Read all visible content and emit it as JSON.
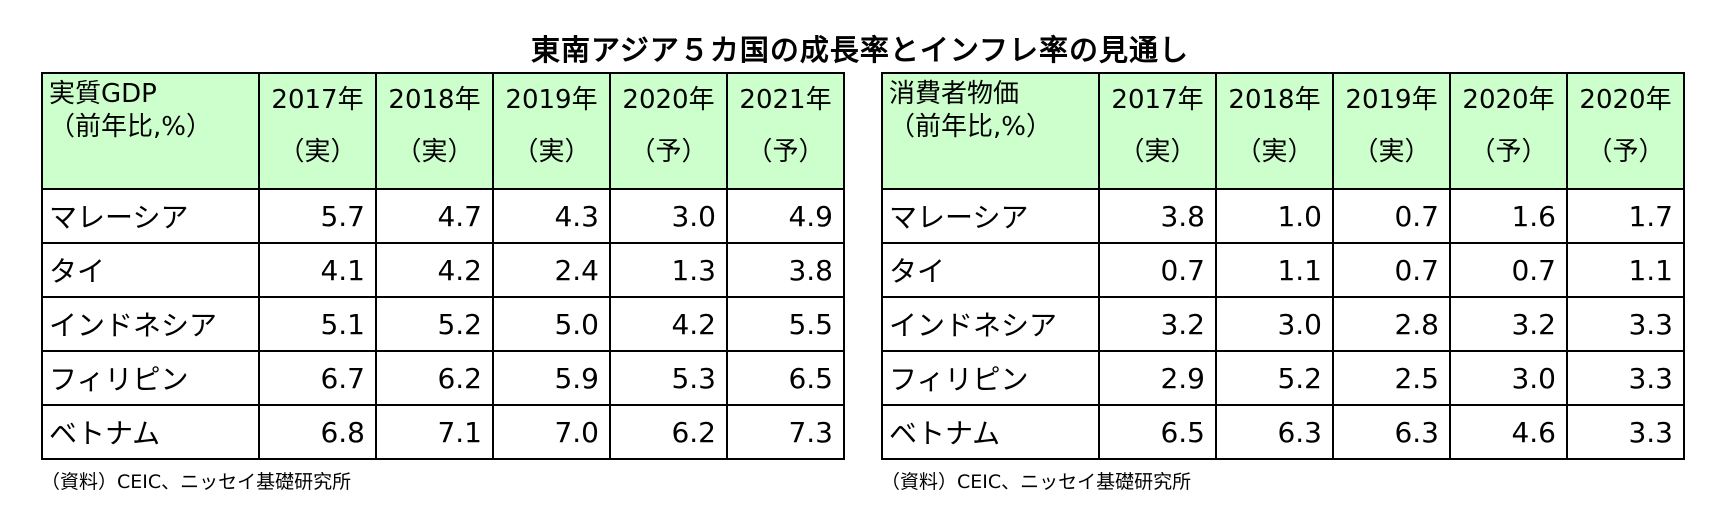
{
  "title": "東南アジア５カ国の成長率とインフレ率の見通し",
  "tables": [
    {
      "label_line1": "実質GDP",
      "label_line2": "（前年比,%）",
      "columns": [
        {
          "year": "2017年",
          "status": "（実）"
        },
        {
          "year": "2018年",
          "status": "（実）"
        },
        {
          "year": "2019年",
          "status": "（実）"
        },
        {
          "year": "2020年",
          "status": "（予）"
        },
        {
          "year": "2021年",
          "status": "（予）"
        }
      ],
      "rows": [
        {
          "country": "マレーシア",
          "values": [
            "5.7",
            "4.7",
            "4.3",
            "3.0",
            "4.9"
          ]
        },
        {
          "country": "タイ",
          "values": [
            "4.1",
            "4.2",
            "2.4",
            "1.3",
            "3.8"
          ]
        },
        {
          "country": "インドネシア",
          "values": [
            "5.1",
            "5.2",
            "5.0",
            "4.2",
            "5.5"
          ]
        },
        {
          "country": "フィリピン",
          "values": [
            "6.7",
            "6.2",
            "5.9",
            "5.3",
            "6.5"
          ]
        },
        {
          "country": "ベトナム",
          "values": [
            "6.8",
            "7.1",
            "7.0",
            "6.2",
            "7.3"
          ]
        }
      ],
      "source": "（資料）CEIC、ニッセイ基礎研究所"
    },
    {
      "label_line1": "消費者物価",
      "label_line2": "（前年比,%）",
      "columns": [
        {
          "year": "2017年",
          "status": "（実）"
        },
        {
          "year": "2018年",
          "status": "（実）"
        },
        {
          "year": "2019年",
          "status": "（実）"
        },
        {
          "year": "2020年",
          "status": "（予）"
        },
        {
          "year": "2020年",
          "status": "（予）"
        }
      ],
      "rows": [
        {
          "country": "マレーシア",
          "values": [
            "3.8",
            "1.0",
            "0.7",
            "1.6",
            "1.7"
          ]
        },
        {
          "country": "タイ",
          "values": [
            "0.7",
            "1.1",
            "0.7",
            "0.7",
            "1.1"
          ]
        },
        {
          "country": "インドネシア",
          "values": [
            "3.2",
            "3.0",
            "2.8",
            "3.2",
            "3.3"
          ]
        },
        {
          "country": "フィリピン",
          "values": [
            "2.9",
            "5.2",
            "2.5",
            "3.0",
            "3.3"
          ]
        },
        {
          "country": "ベトナム",
          "values": [
            "6.5",
            "6.3",
            "6.3",
            "4.6",
            "3.3"
          ]
        }
      ],
      "source": "（資料）CEIC、ニッセイ基礎研究所"
    }
  ],
  "colors": {
    "header_bg": "#ccffcc",
    "border": "#000000"
  }
}
